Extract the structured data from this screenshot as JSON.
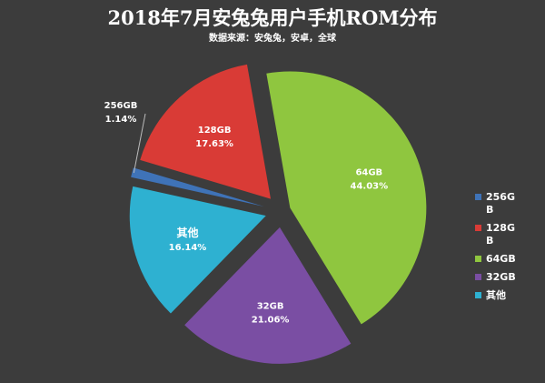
{
  "chart_data": {
    "type": "pie",
    "title": "2018年7月安兔兔用户手机ROM分布",
    "subtitle": "数据来源：安兔兔，安卓，全球",
    "slices": [
      {
        "label": "64GB",
        "value": 44.03,
        "percent_text": "44.03%",
        "color": "#8fc63f"
      },
      {
        "label": "32GB",
        "value": 21.06,
        "percent_text": "21.06%",
        "color": "#7a4ea3"
      },
      {
        "label": "其他",
        "value": 16.14,
        "percent_text": "16.14%",
        "color": "#2eb1d1"
      },
      {
        "label": "256GB",
        "value": 1.14,
        "percent_text": "1.14%",
        "color": "#3f73b8"
      },
      {
        "label": "128GB",
        "value": 17.63,
        "percent_text": "17.63%",
        "color": "#d93b36"
      }
    ],
    "legend": {
      "position": "right",
      "items": [
        {
          "label": "256GB",
          "color": "#3f73b8"
        },
        {
          "label": "128GB",
          "color": "#d93b36"
        },
        {
          "label": "64GB",
          "color": "#8fc63f"
        },
        {
          "label": "32GB",
          "color": "#7a4ea3"
        },
        {
          "label": "其他",
          "color": "#2eb1d1"
        }
      ]
    }
  }
}
